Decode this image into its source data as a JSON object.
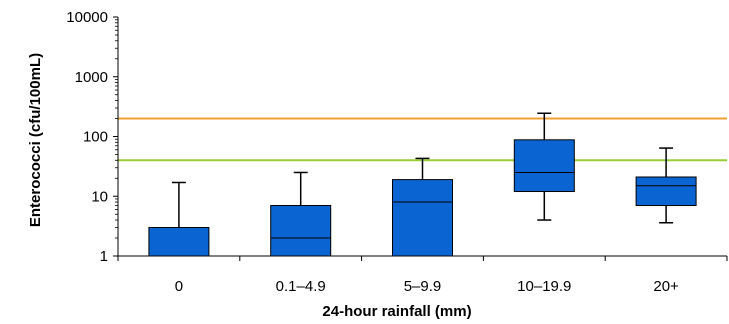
{
  "chart_data": {
    "type": "box",
    "xlabel": "24-hour rainfall (mm)",
    "ylabel": "Enterococci (cfu/100mL)",
    "yscale": "log",
    "ylim": [
      1,
      10000
    ],
    "y_ticks": [
      {
        "value": 1,
        "label": "1"
      },
      {
        "value": 10,
        "label": "10"
      },
      {
        "value": 100,
        "label": "100"
      },
      {
        "value": 1000,
        "label": "1000"
      },
      {
        "value": 10000,
        "label": "10000"
      }
    ],
    "categories": [
      "0",
      "0.1–4.9",
      "5–9.9",
      "10–19.9",
      "20+"
    ],
    "boxes": [
      {
        "min": 1,
        "q1": 1,
        "median": 1,
        "q3": 3,
        "max": 17
      },
      {
        "min": 1,
        "q1": 1,
        "median": 2,
        "q3": 7,
        "max": 25
      },
      {
        "min": 1,
        "q1": 1,
        "median": 8,
        "q3": 19,
        "max": 43
      },
      {
        "min": 4,
        "q1": 12,
        "median": 25,
        "q3": 88,
        "max": 245
      },
      {
        "min": 3.6,
        "q1": 7,
        "median": 15,
        "q3": 21,
        "max": 64
      }
    ],
    "reference_lines": [
      {
        "value": 200,
        "color": "#f0a030"
      },
      {
        "value": 40,
        "color": "#99cc33"
      }
    ],
    "box_color": "#0a64d2",
    "grid": false,
    "legend": "none"
  }
}
